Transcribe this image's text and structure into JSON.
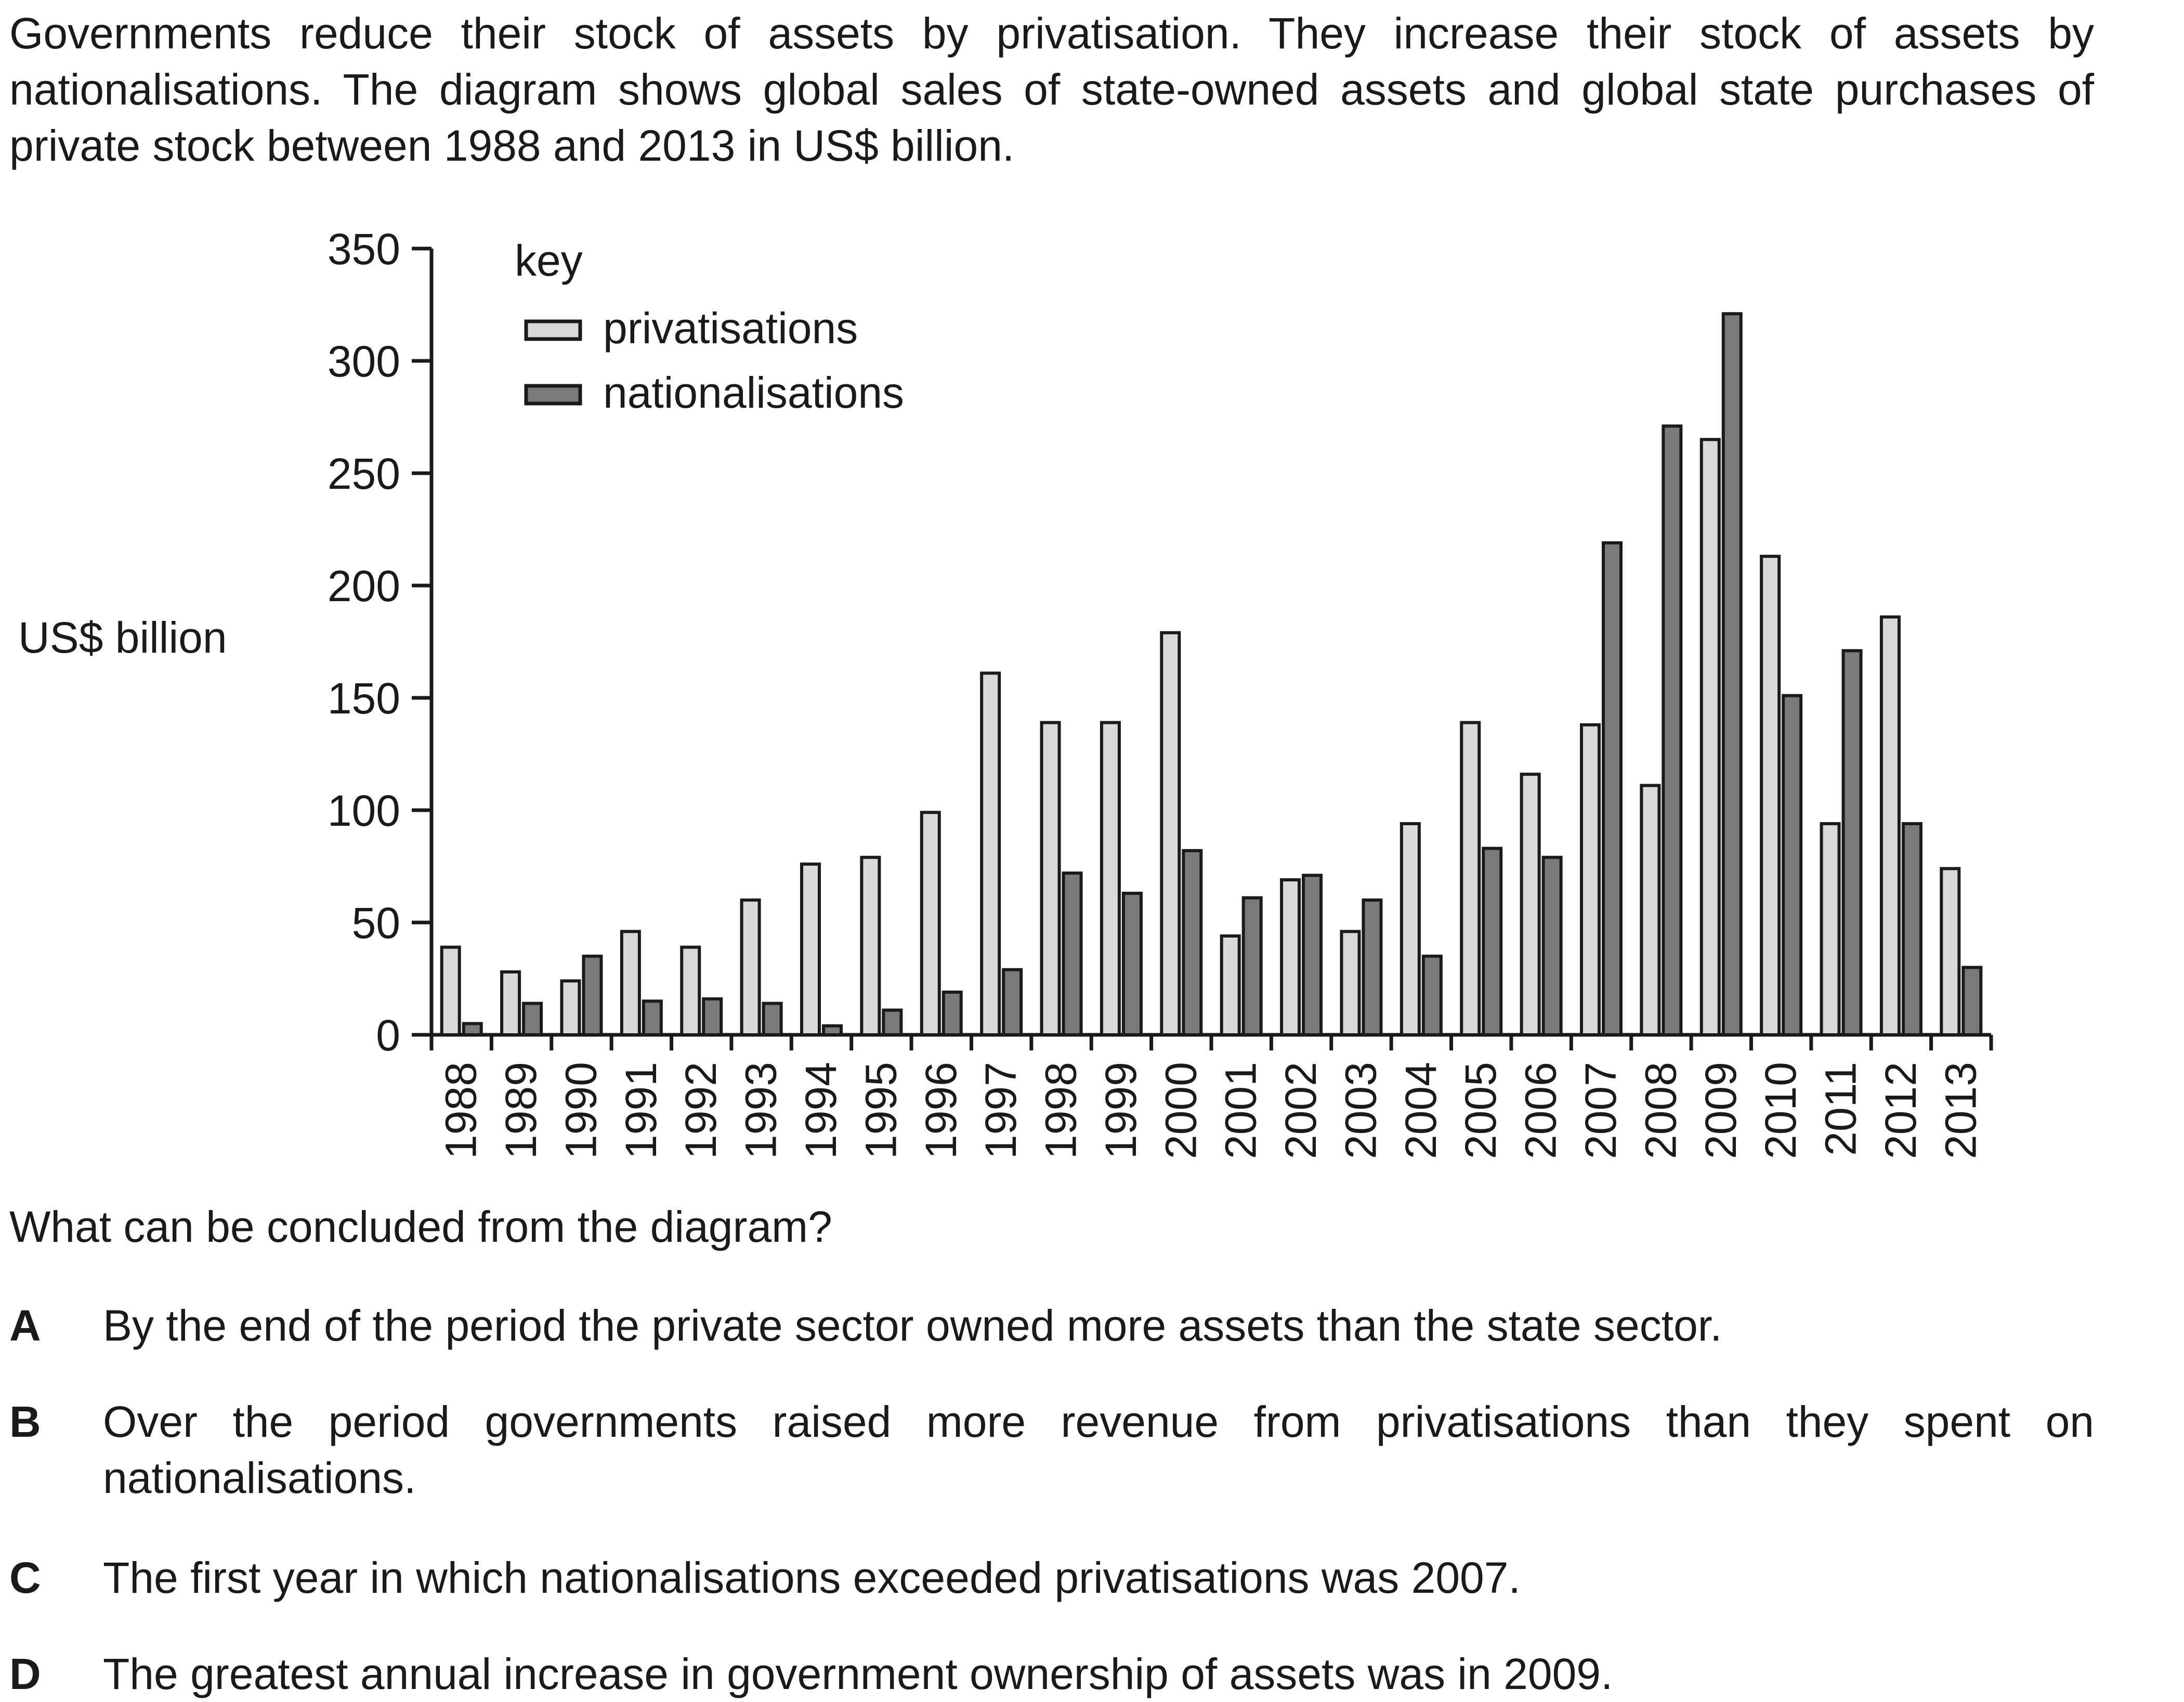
{
  "intro": "Governments reduce their stock of assets by privatisation. They increase their stock of assets by nationalisations. The diagram shows global sales of state-owned assets and global state purchases of private stock between 1988 and 2013 in US$ billion.",
  "question": "What can be concluded from the diagram?",
  "options": [
    {
      "letter": "A",
      "text": "By the end of the period the private sector owned more assets than the state sector."
    },
    {
      "letter": "B",
      "text": "Over the period governments raised more revenue from privatisations than they spent on nationalisations."
    },
    {
      "letter": "C",
      "text": "The first year in which nationalisations exceeded privatisations was 2007."
    },
    {
      "letter": "D",
      "text": "The greatest annual increase in government ownership of assets was in 2009."
    }
  ],
  "chart_data": {
    "type": "bar",
    "title": "",
    "ylabel": "US$ billion",
    "xlabel": "",
    "ylim": [
      0,
      350
    ],
    "yticks": [
      0,
      50,
      100,
      150,
      200,
      250,
      300,
      350
    ],
    "grid": false,
    "legend": {
      "title": "key",
      "position": "top-left"
    },
    "categories": [
      "1988",
      "1989",
      "1990",
      "1991",
      "1992",
      "1993",
      "1994",
      "1995",
      "1996",
      "1997",
      "1998",
      "1999",
      "2000",
      "2001",
      "2002",
      "2003",
      "2004",
      "2005",
      "2006",
      "2007",
      "2008",
      "2009",
      "2010",
      "2011",
      "2012",
      "2013"
    ],
    "series": [
      {
        "name": "privatisations",
        "color": "#d9d9d9",
        "values": [
          39,
          28,
          24,
          46,
          39,
          60,
          76,
          79,
          99,
          161,
          139,
          139,
          179,
          44,
          69,
          46,
          94,
          139,
          116,
          138,
          111,
          265,
          213,
          94,
          186,
          74
        ]
      },
      {
        "name": "nationalisations",
        "color": "#7a7a7a",
        "values": [
          5,
          14,
          35,
          15,
          16,
          14,
          4,
          11,
          19,
          29,
          72,
          63,
          82,
          61,
          71,
          60,
          35,
          83,
          79,
          219,
          271,
          321,
          151,
          171,
          94,
          30
        ]
      }
    ]
  }
}
